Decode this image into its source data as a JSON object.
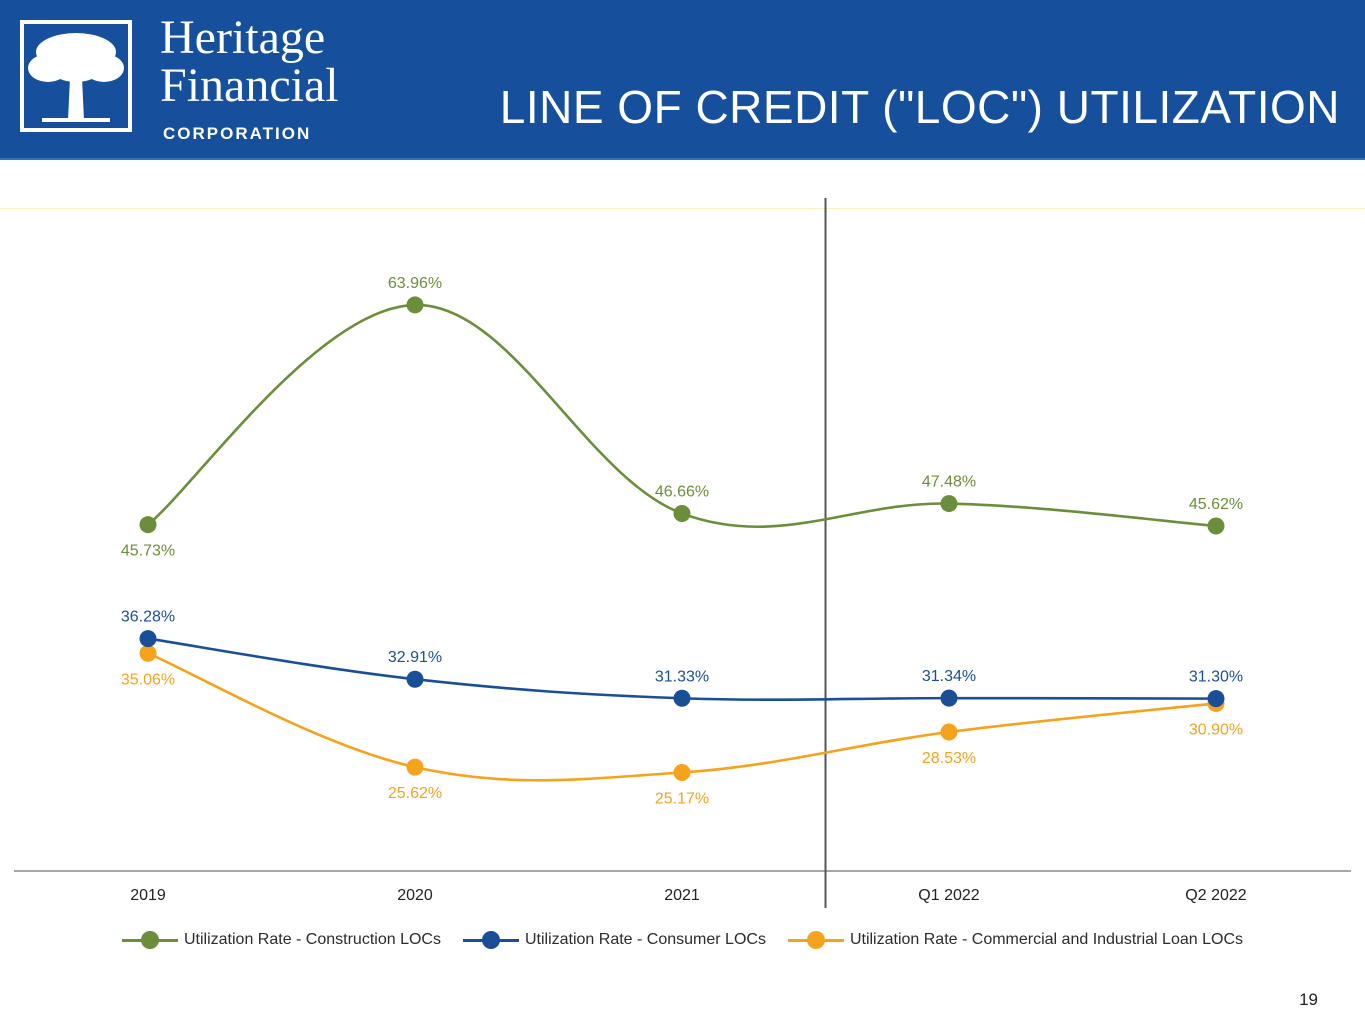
{
  "header": {
    "logo": {
      "line1": "Heritage",
      "line2": "Financial",
      "line3": "CORPORATION"
    },
    "title": "LINE OF CREDIT (\"LOC\") UTILIZATION",
    "background_color": "#164f9b"
  },
  "chart_data": {
    "type": "line",
    "categories": [
      "2019",
      "2020",
      "2021",
      "Q1 2022",
      "Q2 2022"
    ],
    "series": [
      {
        "name": "Utilization Rate - Construction LOCs",
        "color": "#6b8e3a",
        "values": [
          45.73,
          63.96,
          46.66,
          47.48,
          45.62
        ],
        "labels": [
          "45.73%",
          "63.96%",
          "46.66%",
          "47.48%",
          "45.62%"
        ]
      },
      {
        "name": "Utilization Rate - Consumer LOCs",
        "color": "#1a4f98",
        "values": [
          36.28,
          32.91,
          31.33,
          31.34,
          31.3
        ],
        "labels": [
          "36.28%",
          "32.91%",
          "31.33%",
          "31.34%",
          "31.30%"
        ]
      },
      {
        "name": "Utilization Rate - Commercial and Industrial Loan LOCs",
        "color": "#f5a21c",
        "values": [
          35.06,
          25.62,
          25.17,
          28.53,
          30.9
        ],
        "labels": [
          "35.06%",
          "25.62%",
          "25.17%",
          "28.53%",
          "30.90%"
        ]
      }
    ],
    "ylim": [
      17,
      72
    ],
    "grid": false,
    "legend_position": "bottom",
    "separator_line": "between 2021 and Q1 2022"
  },
  "page_number": "19"
}
